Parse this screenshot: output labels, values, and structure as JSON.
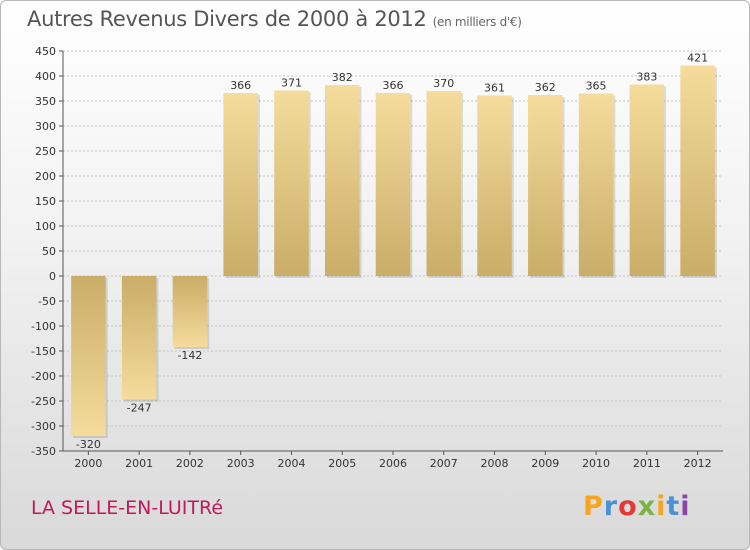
{
  "title": "Autres Revenus Divers de 2000 à 2012",
  "title_unit": "(en milliers d'€)",
  "city": "LA SELLE-EN-LUITRé",
  "logo": {
    "letters": [
      "P",
      "r",
      "o",
      "x",
      "i",
      "t",
      "i"
    ],
    "colors": [
      "#f7a520",
      "#4a90d9",
      "#e53935",
      "#7cb342",
      "#f7a520",
      "#4a90d9",
      "#8e44ad"
    ]
  },
  "chart_data": {
    "type": "bar",
    "title": "Autres Revenus Divers de 2000 à 2012",
    "subtitle": "(en milliers d'€)",
    "categories": [
      "2000",
      "2001",
      "2002",
      "2003",
      "2004",
      "2005",
      "2006",
      "2007",
      "2008",
      "2009",
      "2010",
      "2011",
      "2012"
    ],
    "values": [
      -320,
      -247,
      -142,
      366,
      371,
      382,
      366,
      370,
      361,
      362,
      365,
      383,
      421
    ],
    "data_labels": [
      "-320",
      "-247",
      "-142",
      "366",
      "371",
      "382",
      "366",
      "370",
      "361",
      "362",
      "365",
      "383",
      "421"
    ],
    "ylim": [
      -350,
      450
    ],
    "yticks": [
      -350,
      -300,
      -250,
      -200,
      -150,
      -100,
      -50,
      0,
      50,
      100,
      150,
      200,
      250,
      300,
      350,
      400,
      450
    ],
    "ytick_labels": [
      "-350",
      "-300",
      "-250",
      "-200",
      "-150",
      "-100",
      "-50",
      "0",
      "50",
      "100",
      "150",
      "200",
      "250",
      "300",
      "350",
      "400",
      "450"
    ],
    "grid": true,
    "bar_color": "#e8cf8a",
    "legend": "none"
  }
}
